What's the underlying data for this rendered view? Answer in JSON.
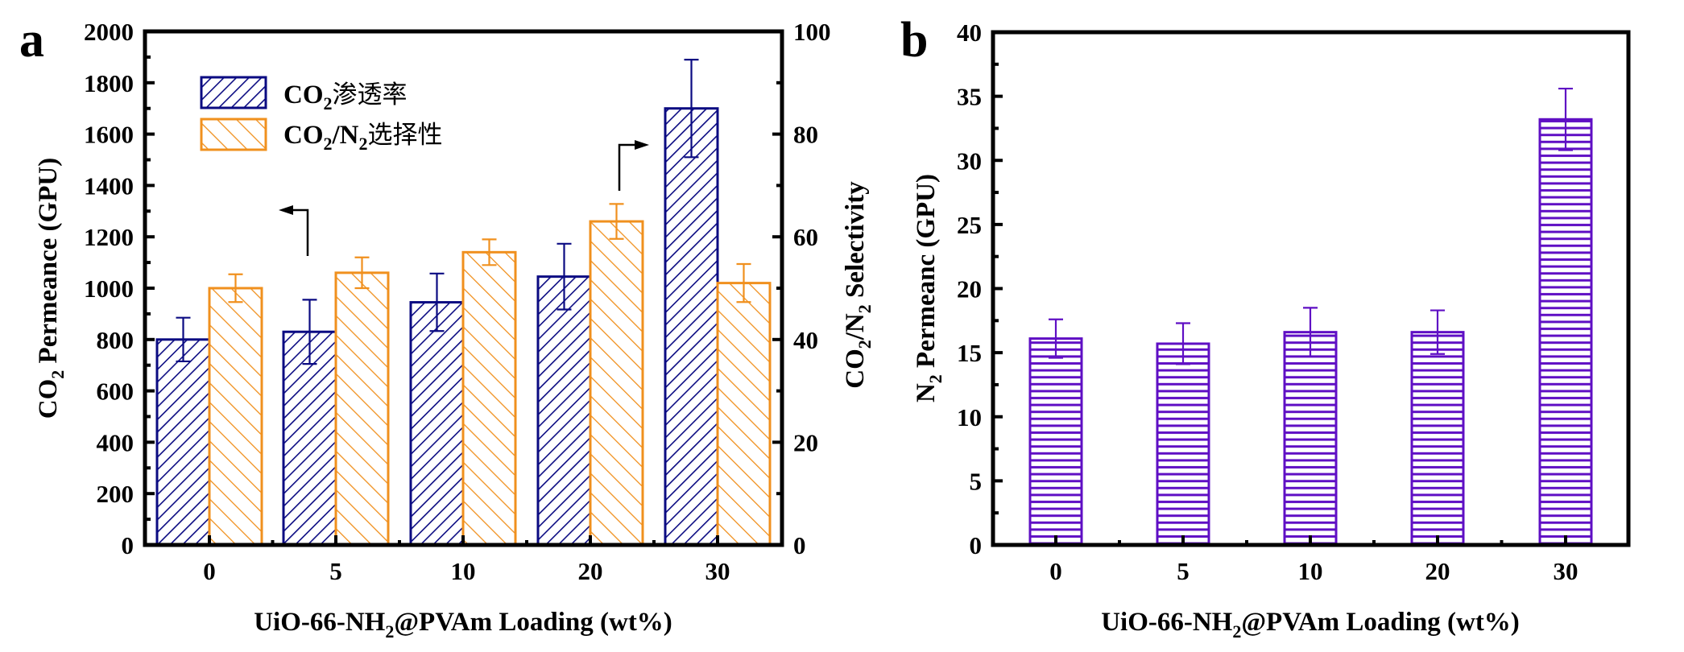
{
  "chart_data": [
    {
      "panel_label": "a",
      "type": "bar",
      "title": "",
      "categories": [
        "0",
        "5",
        "10",
        "20",
        "30"
      ],
      "xlabel": "UiO-66-NH₂@PVAm Loading (wt%)",
      "xlabel_parts": {
        "pre": "UiO-66-NH",
        "sub": "2",
        "post": "@PVAm Loading (wt%)"
      },
      "ylabel": "CO₂ Permeance (GPU)",
      "ylabel_parts": {
        "pre": "CO",
        "sub": "2",
        "post": " Permeance (GPU)"
      },
      "ylim": [
        0,
        2000
      ],
      "yticks": [
        0,
        200,
        400,
        600,
        800,
        1000,
        1200,
        1400,
        1600,
        1800,
        2000
      ],
      "y2label": "CO₂/N₂ Selectivity",
      "y2label_parts": {
        "a": "CO",
        "a_sub": "2",
        "b": "/N",
        "b_sub": "2",
        "c": " Selectivity"
      },
      "y2lim": [
        0,
        100
      ],
      "y2ticks": [
        0,
        20,
        40,
        60,
        80,
        100
      ],
      "grid": false,
      "legend_position": "top-left",
      "series": [
        {
          "name": "CO₂渗透率",
          "name_parts": {
            "pre": "CO",
            "sub": "2",
            "post": "渗透率"
          },
          "axis": "left",
          "color": "#0b0b82",
          "hatch": "forward-diagonal",
          "values": [
            800,
            830,
            945,
            1045,
            1700
          ],
          "errors": [
            85,
            125,
            112,
            128,
            190
          ]
        },
        {
          "name": "CO₂/N₂选择性",
          "name_parts": {
            "pre": "CO",
            "sub": "2",
            "mid": "/N",
            "sub2": "2",
            "post": "选择性"
          },
          "axis": "right",
          "color": "#f0901e",
          "hatch": "backward-diagonal",
          "values": [
            50,
            53,
            57,
            63,
            51
          ],
          "errors": [
            2.7,
            3.0,
            2.5,
            3.4,
            3.7
          ]
        }
      ],
      "annotations": [
        {
          "type": "arrow",
          "points_to": "left-axis",
          "near_category": "5"
        },
        {
          "type": "arrow",
          "points_to": "right-axis",
          "near_category": "20"
        }
      ]
    },
    {
      "panel_label": "b",
      "type": "bar",
      "title": "",
      "categories": [
        "0",
        "5",
        "10",
        "20",
        "30"
      ],
      "xlabel": "UiO-66-NH₂@PVAm Loading (wt%)",
      "xlabel_parts": {
        "pre": "UiO-66-NH",
        "sub": "2",
        "post": "@PVAm Loading (wt%)"
      },
      "ylabel": "N₂ Permeanc (GPU)",
      "ylabel_parts": {
        "pre": "N",
        "sub": "2",
        "post": " Permeanc (GPU)"
      },
      "ylim": [
        0,
        40
      ],
      "yticks": [
        0,
        5,
        10,
        15,
        20,
        25,
        30,
        35,
        40
      ],
      "grid": false,
      "series": [
        {
          "name": "N₂ Permeance",
          "color": "#5f0fc4",
          "hatch": "horizontal",
          "values": [
            16.1,
            15.7,
            16.6,
            16.6,
            33.2
          ],
          "errors": [
            1.5,
            1.6,
            1.9,
            1.7,
            2.4
          ]
        }
      ]
    }
  ]
}
